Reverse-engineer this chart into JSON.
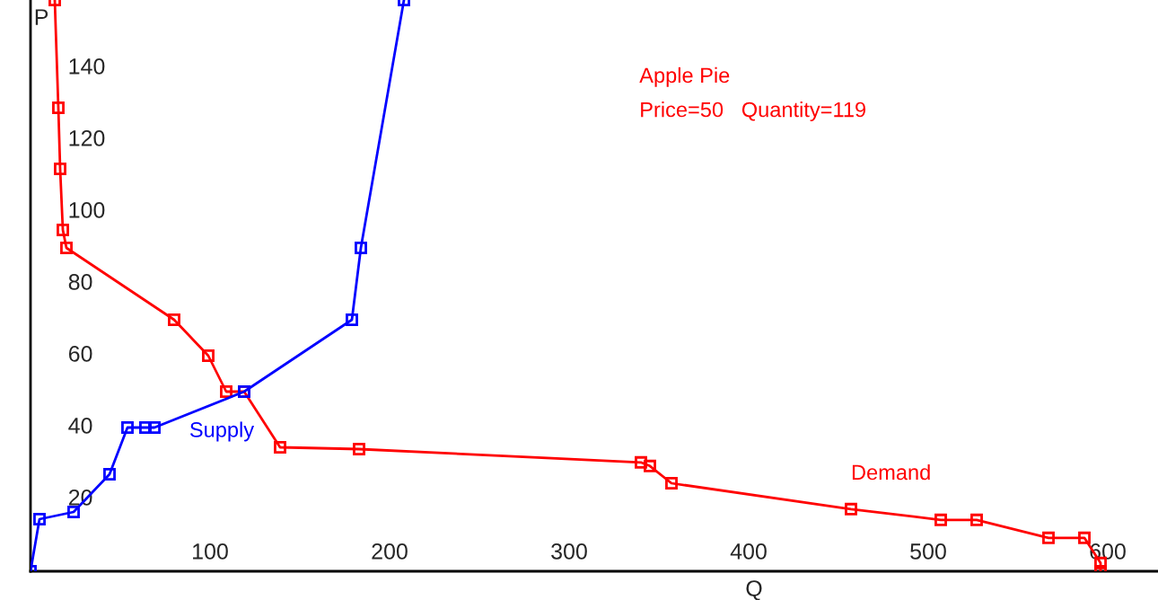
{
  "chart_data": {
    "type": "line",
    "title": "Apple Pie",
    "subtitle": "Price=50   Quantity=119",
    "xlabel": "Q",
    "ylabel": "P",
    "series": [
      {
        "name": "Supply",
        "color": "#0000ff",
        "x": [
          0,
          5,
          24,
          44,
          54,
          64,
          69,
          119,
          179,
          184,
          208
        ],
        "values": [
          0,
          14.5,
          16.5,
          27,
          40,
          40,
          40,
          50,
          70,
          90,
          159
        ]
      },
      {
        "name": "Demand",
        "color": "#ff0000",
        "x": [
          13.5,
          15.5,
          16.5,
          18,
          20,
          80,
          99,
          109,
          119,
          139,
          183,
          340,
          345,
          357,
          457,
          507,
          527,
          567,
          587,
          596,
          596
        ],
        "values": [
          159,
          129,
          112,
          95,
          90,
          70,
          60,
          50,
          50,
          34.5,
          34,
          30.3,
          29.3,
          24.5,
          17.3,
          14.3,
          14.3,
          9.3,
          9.3,
          2.3,
          0
        ]
      }
    ],
    "xlim": [
      0,
      628
    ],
    "ylim": [
      0,
      159
    ],
    "xticks": [
      100,
      200,
      300,
      400,
      500,
      600
    ],
    "yticks": [
      20,
      40,
      60,
      80,
      100,
      120,
      140
    ],
    "marker": "square",
    "line_style": "solid",
    "grid": false
  }
}
